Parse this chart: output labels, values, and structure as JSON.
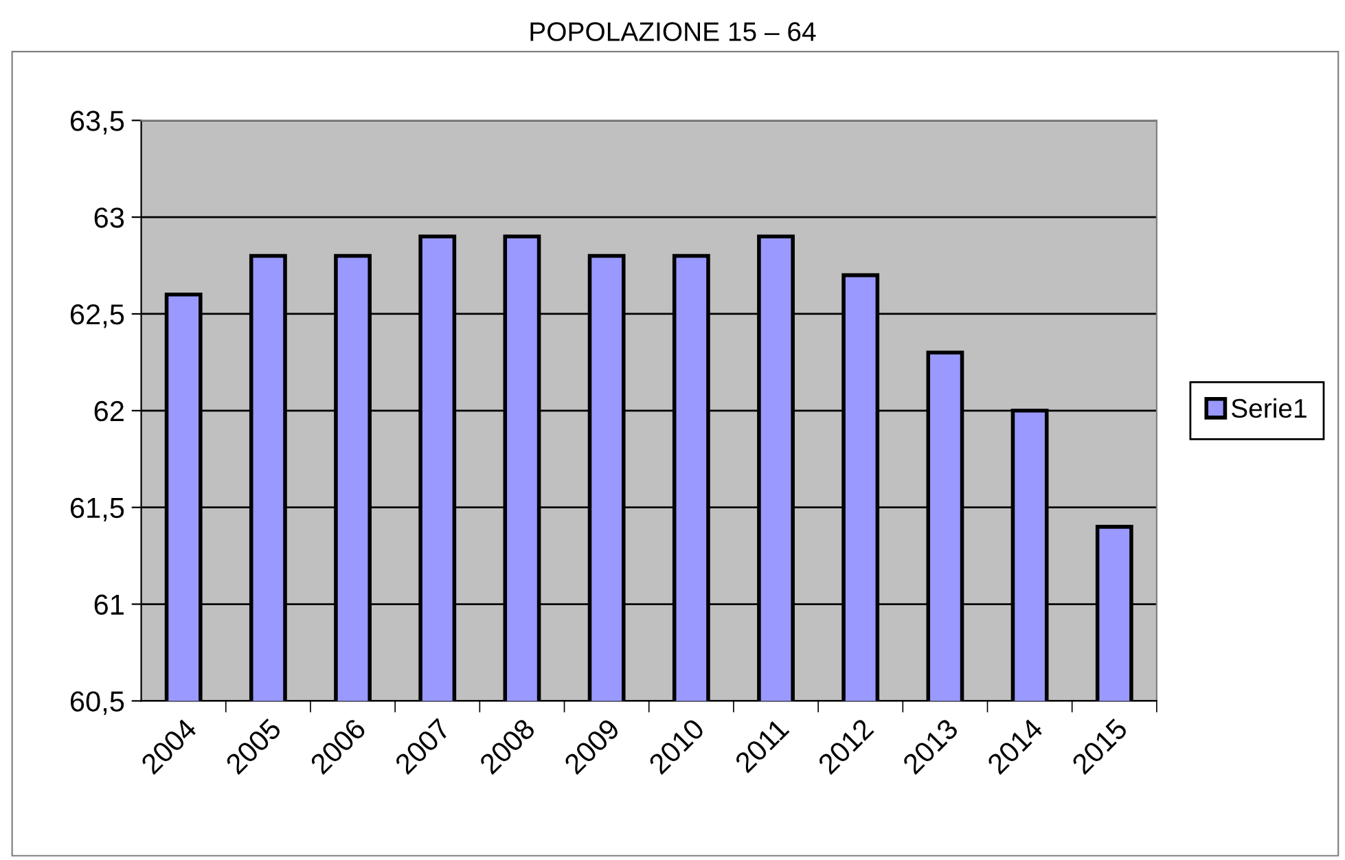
{
  "chart_data": {
    "type": "bar",
    "title": "POPOLAZIONE 15 – 64",
    "categories": [
      "2004",
      "2005",
      "2006",
      "2007",
      "2008",
      "2009",
      "2010",
      "2011",
      "2012",
      "2013",
      "2014",
      "2015"
    ],
    "series": [
      {
        "name": "Serie1",
        "color": "#9999ff",
        "values": [
          62.6,
          62.8,
          62.8,
          62.9,
          62.9,
          62.8,
          62.8,
          62.9,
          62.7,
          62.3,
          62.0,
          61.4
        ]
      }
    ],
    "ylim": [
      60.5,
      63.5
    ],
    "yticks": [
      {
        "value": 60.5,
        "label": "60,5"
      },
      {
        "value": 61,
        "label": "61"
      },
      {
        "value": 61.5,
        "label": "61,5"
      },
      {
        "value": 62,
        "label": "62"
      },
      {
        "value": 62.5,
        "label": "62,5"
      },
      {
        "value": 63,
        "label": "63"
      },
      {
        "value": 63.5,
        "label": "63,5"
      }
    ],
    "grid": "y",
    "legend": "right"
  }
}
